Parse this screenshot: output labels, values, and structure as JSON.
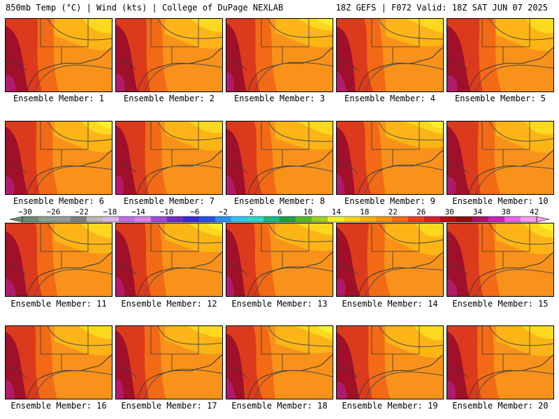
{
  "header": {
    "left_title": "850mb Temp (°C) | Wind (kts) | College of DuPage NEXLAB",
    "right_title": "18Z GEFS | F072 Valid: 18Z SAT JUN 07 2025"
  },
  "caption_prefix": "Ensemble Member: ",
  "members": [
    1,
    2,
    3,
    4,
    5,
    6,
    7,
    8,
    9,
    10,
    11,
    12,
    13,
    14,
    15,
    16,
    17,
    18,
    19,
    20
  ],
  "legend": {
    "labels": [
      "−30",
      "−26",
      "−22",
      "−18",
      "−14",
      "−10",
      "−6",
      "−2",
      "2",
      "6",
      "10",
      "14",
      "18",
      "22",
      "26",
      "30",
      "34",
      "38",
      "42"
    ],
    "colors": [
      "#6e8a72",
      "#8aa08e",
      "#9a9a9a",
      "#7f7f7f",
      "#b8b8b8",
      "#d6b8e6",
      "#c070e0",
      "#e27ee8",
      "#a24ad8",
      "#6a2ec8",
      "#3a2ad0",
      "#2650e0",
      "#2a8ef0",
      "#38c4f0",
      "#2cd8c8",
      "#1cb884",
      "#20a040",
      "#58b820",
      "#a0d020",
      "#f2f22a",
      "#fcd21e",
      "#fcb012",
      "#f89010",
      "#f46a16",
      "#ec4018",
      "#d82020",
      "#b01010",
      "#8a1010",
      "#b0106a",
      "#cc20b0",
      "#ee60e8",
      "#fa9cf0"
    ]
  },
  "map_colors": {
    "hot": "#a0102a",
    "warm": "#dc3a1c",
    "mid": "#f26a16",
    "orange": "#f8921a",
    "light": "#fcb416",
    "yellow": "#fcd81e",
    "pale": "#f8f22a",
    "magenta": "#b01a6a",
    "coast": "#3a3a3a",
    "contour": "#505050"
  }
}
